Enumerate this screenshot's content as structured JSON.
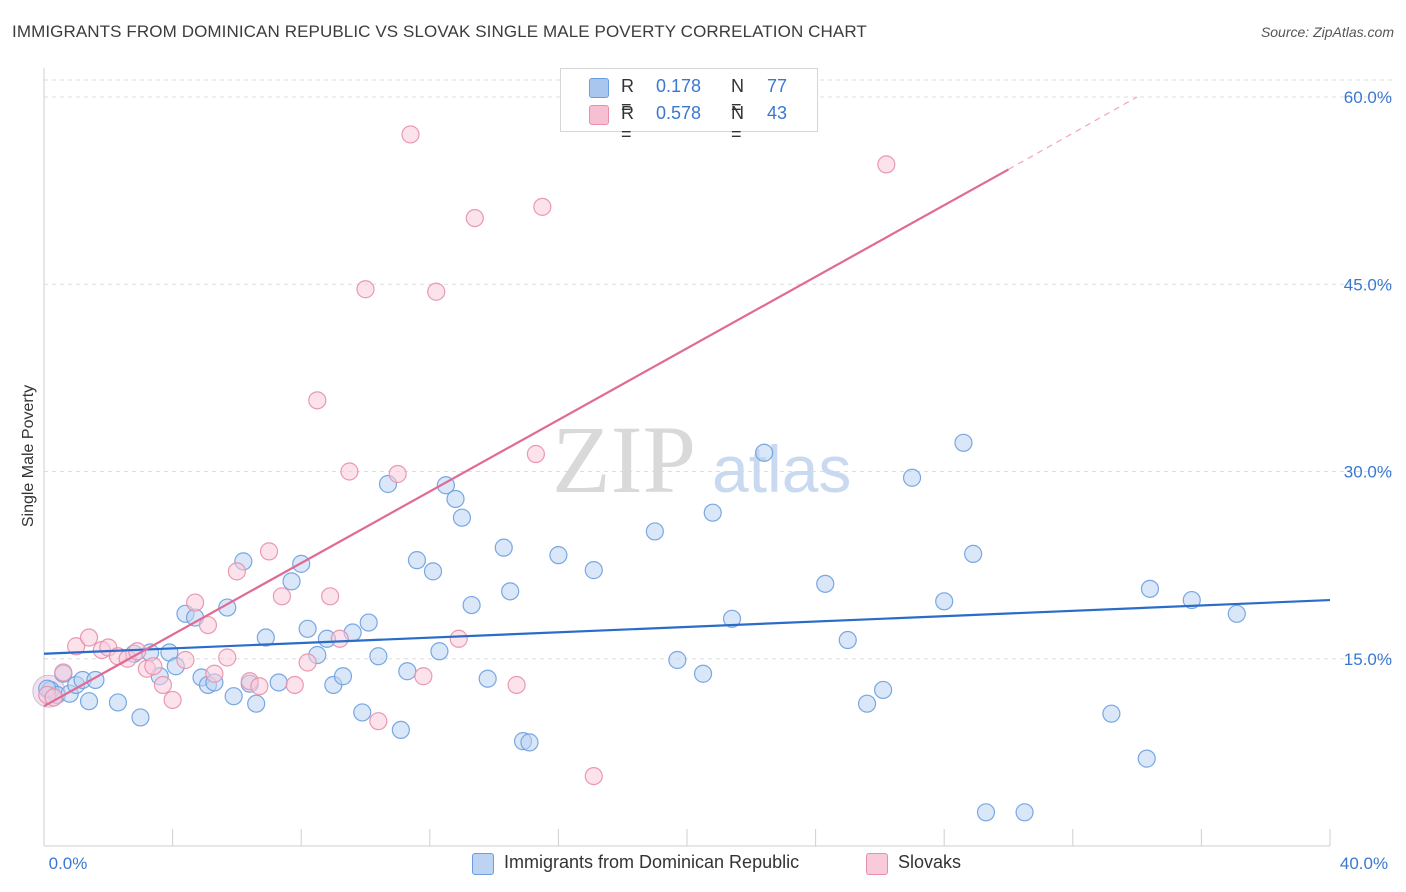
{
  "title": "IMMIGRANTS FROM DOMINICAN REPUBLIC VS SLOVAK SINGLE MALE POVERTY CORRELATION CHART",
  "source": "Source: ZipAtlas.com",
  "watermark": {
    "zip": "ZIP",
    "atlas": "atlas"
  },
  "legend": {
    "r_label": "R =",
    "n_label": "N =",
    "rows": [
      {
        "r": "0.178",
        "n": "77",
        "color": "#a9c6ef",
        "border": "#6b9ee0"
      },
      {
        "r": "0.578",
        "n": "43",
        "color": "#f7c0d2",
        "border": "#e88fab"
      }
    ]
  },
  "bottom_legend": [
    {
      "label": "Immigrants from Dominican Republic",
      "color": "#bcd3f3",
      "border": "#6b9ee0"
    },
    {
      "label": "Slovaks",
      "color": "#f9cbda",
      "border": "#e88fab"
    }
  ],
  "chart_data": {
    "type": "scatter",
    "ylabel": "Single Male Poverty",
    "xlabel": "",
    "xlim": [
      0,
      40
    ],
    "ylim": [
      0,
      60
    ],
    "x_tick_labels": [
      "0.0%",
      "40.0%"
    ],
    "y_tick_labels": [
      "15.0%",
      "30.0%",
      "45.0%",
      "60.0%"
    ],
    "y_ticks": [
      15,
      30,
      45,
      60
    ],
    "grid": "horizontal dashed",
    "series": [
      {
        "name": "Immigrants from Dominican Republic",
        "color": "#6b9ee0",
        "fill": "#bcd3f3",
        "trend": {
          "x": [
            0,
            40
          ],
          "y": [
            15.4,
            19.7
          ],
          "color": "#2a6cc8"
        },
        "points": [
          [
            0.2,
            12.5
          ],
          [
            0.4,
            12.1
          ],
          [
            0.6,
            13.8
          ],
          [
            0.8,
            12.2
          ],
          [
            1.0,
            12.9
          ],
          [
            1.2,
            13.3
          ],
          [
            1.4,
            11.6
          ],
          [
            1.6,
            13.3
          ],
          [
            2.3,
            11.5
          ],
          [
            2.8,
            15.4
          ],
          [
            3.0,
            10.3
          ],
          [
            3.3,
            15.5
          ],
          [
            3.6,
            13.6
          ],
          [
            3.9,
            15.5
          ],
          [
            4.1,
            14.4
          ],
          [
            4.4,
            18.6
          ],
          [
            4.7,
            18.3
          ],
          [
            4.9,
            13.5
          ],
          [
            5.1,
            12.9
          ],
          [
            5.3,
            13.1
          ],
          [
            5.7,
            19.1
          ],
          [
            5.9,
            12.0
          ],
          [
            6.2,
            22.8
          ],
          [
            6.4,
            13.0
          ],
          [
            6.6,
            11.4
          ],
          [
            6.9,
            16.7
          ],
          [
            7.3,
            13.1
          ],
          [
            7.7,
            21.2
          ],
          [
            8.0,
            22.6
          ],
          [
            8.2,
            17.4
          ],
          [
            8.5,
            15.3
          ],
          [
            8.8,
            16.6
          ],
          [
            9.0,
            12.9
          ],
          [
            9.3,
            13.6
          ],
          [
            9.6,
            17.1
          ],
          [
            9.9,
            10.7
          ],
          [
            10.1,
            17.9
          ],
          [
            10.4,
            15.2
          ],
          [
            10.7,
            29.0
          ],
          [
            11.1,
            9.3
          ],
          [
            11.3,
            14.0
          ],
          [
            11.6,
            22.9
          ],
          [
            12.1,
            22.0
          ],
          [
            12.3,
            15.6
          ],
          [
            12.5,
            28.9
          ],
          [
            12.8,
            27.8
          ],
          [
            13.0,
            26.3
          ],
          [
            13.3,
            19.3
          ],
          [
            13.8,
            13.4
          ],
          [
            14.3,
            23.9
          ],
          [
            14.5,
            20.4
          ],
          [
            14.9,
            8.4
          ],
          [
            15.1,
            8.3
          ],
          [
            16.0,
            23.3
          ],
          [
            17.1,
            22.1
          ],
          [
            19.0,
            25.2
          ],
          [
            19.7,
            14.9
          ],
          [
            20.5,
            13.8
          ],
          [
            20.8,
            26.7
          ],
          [
            21.4,
            18.2
          ],
          [
            22.4,
            31.5
          ],
          [
            24.3,
            21.0
          ],
          [
            25.0,
            16.5
          ],
          [
            25.6,
            11.4
          ],
          [
            26.1,
            12.5
          ],
          [
            27.0,
            29.5
          ],
          [
            28.0,
            19.6
          ],
          [
            28.6,
            32.3
          ],
          [
            28.9,
            23.4
          ],
          [
            29.3,
            2.7
          ],
          [
            30.5,
            2.7
          ],
          [
            33.2,
            10.6
          ],
          [
            34.3,
            7.0
          ],
          [
            34.4,
            20.6
          ],
          [
            35.7,
            19.7
          ],
          [
            37.1,
            18.6
          ],
          [
            0.1,
            12.6
          ]
        ]
      },
      {
        "name": "Slovaks",
        "color": "#e88fab",
        "fill": "#f9cbda",
        "trend": {
          "x": [
            0,
            30
          ],
          "y": [
            11.2,
            54.2
          ],
          "color": "#e06a93"
        },
        "trend_dashed": {
          "x": [
            30,
            34
          ],
          "y": [
            54.2,
            60.0
          ]
        },
        "points": [
          [
            0.1,
            12.1
          ],
          [
            0.3,
            11.9
          ],
          [
            0.6,
            13.9
          ],
          [
            1.0,
            16.0
          ],
          [
            1.4,
            16.7
          ],
          [
            1.8,
            15.7
          ],
          [
            2.0,
            15.9
          ],
          [
            2.3,
            15.2
          ],
          [
            2.6,
            15.0
          ],
          [
            2.9,
            15.6
          ],
          [
            3.2,
            14.2
          ],
          [
            3.4,
            14.4
          ],
          [
            3.7,
            12.9
          ],
          [
            4.0,
            11.7
          ],
          [
            4.4,
            14.9
          ],
          [
            4.7,
            19.5
          ],
          [
            5.1,
            17.7
          ],
          [
            5.3,
            13.8
          ],
          [
            5.7,
            15.1
          ],
          [
            6.0,
            22.0
          ],
          [
            6.4,
            13.2
          ],
          [
            6.7,
            12.8
          ],
          [
            7.0,
            23.6
          ],
          [
            7.4,
            20.0
          ],
          [
            7.8,
            12.9
          ],
          [
            8.2,
            14.7
          ],
          [
            8.5,
            35.7
          ],
          [
            8.9,
            20.0
          ],
          [
            9.2,
            16.6
          ],
          [
            9.5,
            30.0
          ],
          [
            10.0,
            44.6
          ],
          [
            10.4,
            10.0
          ],
          [
            11.0,
            29.8
          ],
          [
            11.4,
            57.0
          ],
          [
            11.8,
            13.6
          ],
          [
            12.2,
            44.4
          ],
          [
            12.9,
            16.6
          ],
          [
            13.4,
            50.3
          ],
          [
            14.7,
            12.9
          ],
          [
            15.3,
            31.4
          ],
          [
            15.5,
            51.2
          ],
          [
            17.1,
            5.6
          ],
          [
            26.2,
            54.6
          ]
        ]
      }
    ]
  }
}
